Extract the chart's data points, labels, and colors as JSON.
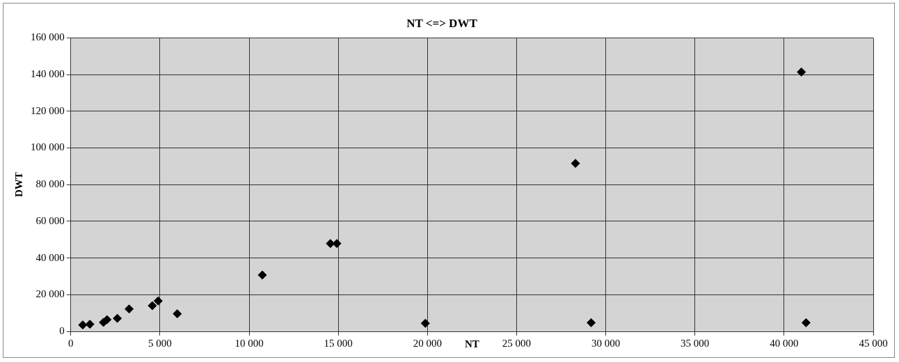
{
  "chart_data": {
    "type": "scatter",
    "title": "NT <=> DWT",
    "xlabel": "NT",
    "ylabel": "DWT",
    "series": [
      {
        "color": "#000000",
        "x": [
          670,
          1070,
          1830,
          2030,
          2610,
          3270,
          4570,
          4900,
          5970,
          10740,
          14560,
          14920,
          19880,
          28300,
          29180,
          40970,
          41230
        ],
        "values": [
          3500,
          3900,
          4900,
          6400,
          7100,
          12200,
          14000,
          16600,
          9600,
          30700,
          47900,
          47900,
          4400,
          91600,
          4700,
          141400,
          4700
        ]
      }
    ],
    "xlim": [
      0,
      45000
    ],
    "xticks": [
      {
        "value": 0,
        "label": "0"
      },
      {
        "value": 5000,
        "label": "5 000"
      },
      {
        "value": 10000,
        "label": "10 000"
      },
      {
        "value": 15000,
        "label": "15 000"
      },
      {
        "value": 20000,
        "label": "20 000"
      },
      {
        "value": 25000,
        "label": "25 000"
      },
      {
        "value": 30000,
        "label": "30 000"
      },
      {
        "value": 35000,
        "label": "35 000"
      },
      {
        "value": 40000,
        "label": "40 000"
      },
      {
        "value": 45000,
        "label": "45 000"
      }
    ],
    "ylim": [
      0,
      160000
    ],
    "yticks": [
      {
        "value": 0,
        "label": "0"
      },
      {
        "value": 20000,
        "label": "20 000"
      },
      {
        "value": 40000,
        "label": "40 000"
      },
      {
        "value": 60000,
        "label": "60 000"
      },
      {
        "value": 80000,
        "label": "80 000"
      },
      {
        "value": 100000,
        "label": "100 000"
      },
      {
        "value": 120000,
        "label": "120 000"
      },
      {
        "value": 140000,
        "label": "140 000"
      },
      {
        "value": 160000,
        "label": "160 000"
      }
    ],
    "grid": true,
    "marker": "diamond",
    "legend": false
  }
}
